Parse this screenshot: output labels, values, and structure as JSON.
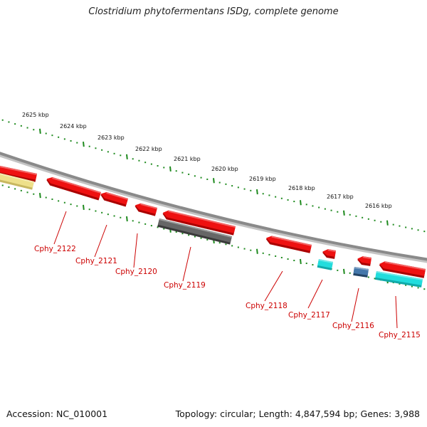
{
  "title": "Clostridium phytofermentans ISDg, complete genome",
  "footer": {
    "accession": "Accession: NC_010001",
    "topology": "Topology: circular; Length: 4,847,594 bp; Genes: 3,988"
  },
  "colors": {
    "backbone": "#8a8a8a",
    "ruler": "#1e8a1e",
    "label": "#cc0000",
    "red_gene": "#ee1111",
    "gray_gene": "#666666",
    "cyan_gene": "#22dddd",
    "blue_gene": "#4477aa",
    "yellow_gene": "#eee08a"
  },
  "ruler": {
    "tick_labels": [
      "2625 kbp",
      "2624 kbp",
      "2623 kbp",
      "2622 kbp",
      "2621 kbp",
      "2620 kbp",
      "2619 kbp",
      "2618 kbp",
      "2617 kbp",
      "2616 kbp"
    ]
  },
  "genes": [
    {
      "label": "Cphy_2122"
    },
    {
      "label": "Cphy_2121"
    },
    {
      "label": "Cphy_2120"
    },
    {
      "label": "Cphy_2119"
    },
    {
      "label": "Cphy_2118"
    },
    {
      "label": "Cphy_2117"
    },
    {
      "label": "Cphy_2116"
    },
    {
      "label": "Cphy_2115"
    }
  ]
}
